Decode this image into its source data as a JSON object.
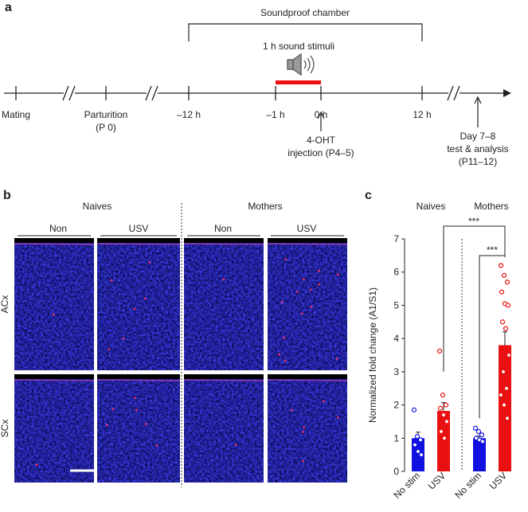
{
  "panel_a": {
    "letter": "a",
    "chamber": "Soundproof chamber",
    "stimulus": "1 h sound stimuli",
    "timepoints": [
      [
        "Mating"
      ],
      [
        "Parturition",
        "(P 0)"
      ],
      [
        "–12 h"
      ],
      [
        "–1 h"
      ],
      [
        "0 h"
      ],
      [
        "12 h"
      ]
    ],
    "injection": [
      "4-OHT",
      "injection (P4–5)"
    ],
    "test": [
      "Day 7–8",
      "test & analysis",
      "(P11–12)"
    ]
  },
  "panel_b": {
    "letter": "b",
    "groups": [
      "Naives",
      "Mothers"
    ],
    "columns": [
      "Non",
      "USV",
      "Non",
      "USV"
    ],
    "rows": [
      "ACx",
      "SCx"
    ]
  },
  "chart_data": {
    "type": "bar",
    "letter": "c",
    "groups": [
      "Naives",
      "Mothers"
    ],
    "categories": [
      "No stim",
      "USV",
      "No stim",
      "USV"
    ],
    "values": [
      1.0,
      1.82,
      1.0,
      3.8
    ],
    "errors": [
      0.18,
      0.25,
      0.07,
      0.4
    ],
    "colors": [
      "#1010e0",
      "#e81010",
      "#1010e0",
      "#e81010"
    ],
    "points": [
      [
        1.85,
        1.05,
        0.95,
        0.8,
        0.6,
        0.5
      ],
      [
        3.62,
        2.3,
        2.0,
        1.9,
        1.7,
        1.5,
        1.2,
        1.0
      ],
      [
        1.3,
        1.2,
        1.1,
        1.0,
        0.95,
        0.9
      ],
      [
        6.2,
        5.9,
        5.7,
        5.4,
        5.05,
        5.0,
        4.5,
        4.3,
        3.5,
        3.0,
        2.5,
        2.3,
        2.0,
        1.6
      ]
    ],
    "ylabel": "Normalized fold change (A1/S1)",
    "ylim": [
      0,
      7
    ],
    "yticks": [
      0,
      1,
      2,
      3,
      4,
      5,
      6,
      7
    ],
    "significance": [
      "***",
      "***"
    ]
  }
}
